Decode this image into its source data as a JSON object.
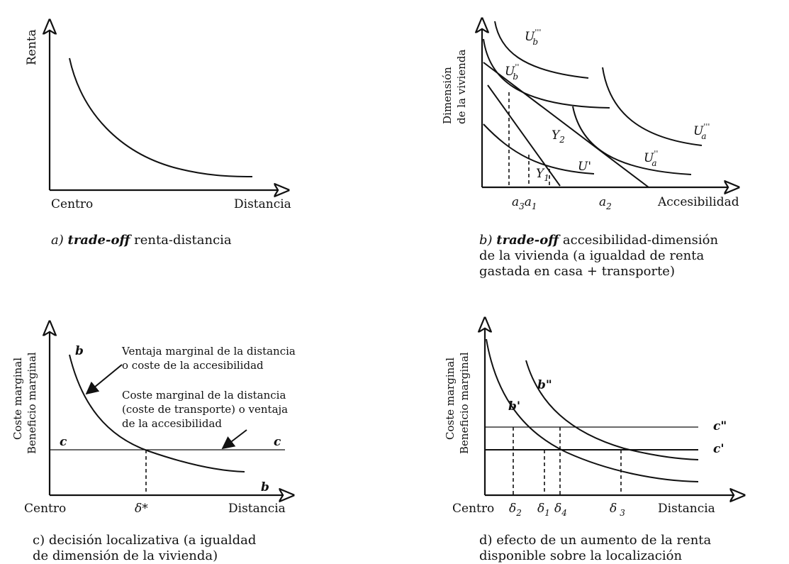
{
  "panel_a": {
    "y_label": "Renta",
    "x_label_left": "Centro",
    "x_label_right": "Distancia",
    "caption_letter": "a)",
    "caption_italic": "trade-off",
    "caption_rest": "renta-distancia"
  },
  "panel_b": {
    "y_label_line1": "Dimensión",
    "y_label_line2": "de la vivienda",
    "x_label": "Accesibilidad",
    "curve_labels": [
      "U'''b",
      "U''b",
      "U'''a",
      "U''a",
      "U'"
    ],
    "u_b3": "U",
    "u_b3_sup": "'''",
    "u_b3_sub": "b",
    "u_b2": "U",
    "u_b2_sup": "''",
    "u_b2_sub": "b",
    "u_a3": "U",
    "u_a3_sup": "'''",
    "u_a3_sub": "a",
    "u_a2": "U",
    "u_a2_sup": "''",
    "u_a2_sub": "a",
    "u_1": "U'",
    "gamma2": "Y",
    "gamma2_sub": "2",
    "gamma1": "Y",
    "gamma1_sub": "1",
    "a3": "a",
    "a3_sub": "3",
    "a1": "a",
    "a1_sub": "1",
    "a2": "a",
    "a2_sub": "2",
    "caption_letter": "b)",
    "caption_italic": "trade-off",
    "caption_line1_rest": "accesibilidad-dimensión",
    "caption_line2": "de la vivienda (a igualdad de renta",
    "caption_line3": "gastada en casa + transporte)"
  },
  "panel_c": {
    "y_label_line1": "Coste marginal",
    "y_label_line2": "Beneficio marginal",
    "x_label_left": "Centro",
    "x_label_right": "Distancia",
    "curve_b_top": "b",
    "curve_b_bottom": "b",
    "line_c_left": "c",
    "line_c_right": "c",
    "delta": "δ*",
    "annotation1_line1": "Ventaja marginal de la distancia",
    "annotation1_line2": "o coste de la accesibilidad",
    "annotation2_line1": "Coste marginal de la distancia",
    "annotation2_line2": "(coste de transporte) o ventaja",
    "annotation2_line3": "de la accesibilidad",
    "caption_line1": "c) decisión localizativa (a igualdad",
    "caption_line2": "de dimensión de la vivienda)"
  },
  "panel_d": {
    "y_label_line1": "Coste marginal",
    "y_label_line2": "Beneficio marginal",
    "x_label_left": "Centro",
    "x_label_right": "Distancia",
    "b_double": "b\"",
    "b_single": "b'",
    "c_double": "c\"",
    "c_single": "c'",
    "d2": "δ",
    "d2_sub": "2",
    "d1": "δ",
    "d1_sub": "1",
    "d4": "δ",
    "d4_sub": "4",
    "d3": "δ",
    "d3_sub": "3",
    "caption_line1": "d) efecto de un aumento de la renta",
    "caption_line2": "disponible sobre la localización"
  }
}
